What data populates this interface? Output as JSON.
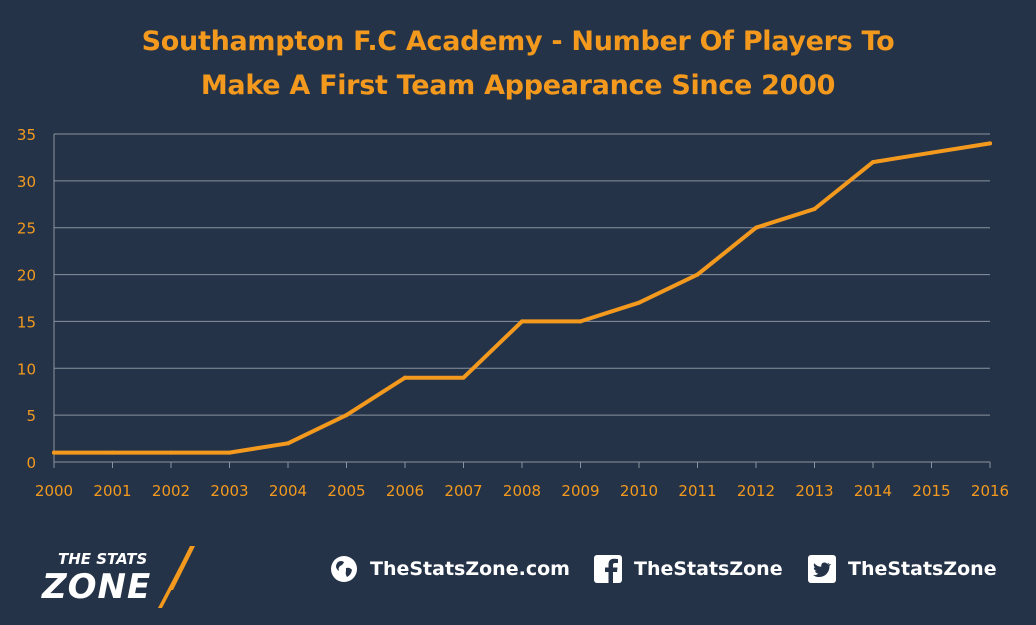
{
  "chart_data": {
    "type": "line",
    "title": [
      "Southampton F.C Academy - Number Of Players To",
      "Make A First Team Appearance Since 2000"
    ],
    "x": [
      "2000",
      "2001",
      "2002",
      "2003",
      "2004",
      "2005",
      "2006",
      "2007",
      "2008",
      "2009",
      "2010",
      "2011",
      "2012",
      "2013",
      "2014",
      "2015",
      "2016"
    ],
    "values": [
      1,
      1,
      1,
      1,
      2,
      5,
      9,
      9,
      15,
      15,
      17,
      20,
      25,
      27,
      32,
      33,
      34
    ],
    "ylim": [
      0,
      35
    ],
    "yticks": [
      "0",
      "5",
      "10",
      "15",
      "20",
      "25",
      "30",
      "35"
    ],
    "grid": true,
    "legend": "none",
    "colors": {
      "line": "#F39A1E",
      "text": "#F39A1E",
      "grid": "#8A939F",
      "background": "#253348"
    }
  },
  "footer": {
    "logo_text_top": "THE STATS",
    "logo_text_bottom": "ZONE",
    "website": "TheStatsZone.com",
    "facebook": "TheStatsZone",
    "twitter": "TheStatsZone",
    "website_icon": "globe-icon",
    "facebook_icon": "facebook-icon",
    "twitter_icon": "twitter-icon"
  }
}
